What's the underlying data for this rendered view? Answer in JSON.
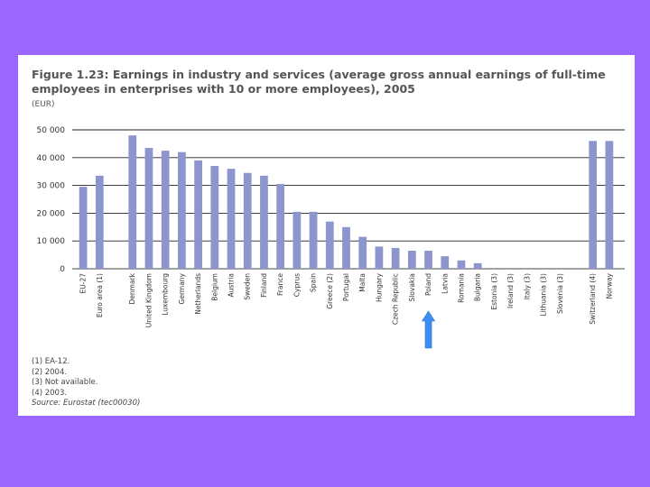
{
  "chart_data": {
    "type": "bar",
    "title": "Figure 1.23: Earnings in industry and services (average gross annual earnings of full-time employees in enterprises with 10 or more employees), 2005",
    "unit": "(EUR)",
    "ylim": [
      0,
      50000
    ],
    "yticks": [
      "50 000",
      "40 000",
      "30 000",
      "20 000",
      "10 000",
      "0"
    ],
    "grid": true,
    "categories": [
      "EU-27",
      "Euro area (1)",
      "",
      "Denmark",
      "United Kingdom",
      "Luxembourg",
      "Germany",
      "Netherlands",
      "Belgium",
      "Austria",
      "Sweden",
      "Finland",
      "France",
      "Cyprus",
      "Spain",
      "Greece (2)",
      "Portugal",
      "Malta",
      "Hungary",
      "Czech Republic",
      "Slovakia",
      "Poland",
      "Latvia",
      "Romania",
      "Bulgaria",
      "Estonia (3)",
      "Ireland (3)",
      "Italy (3)",
      "Lithuania (3)",
      "Slovenia (3)",
      "",
      "Switzerland (4)",
      "Norway"
    ],
    "values": [
      29500,
      33500,
      null,
      48000,
      43500,
      42500,
      42000,
      39000,
      37000,
      36000,
      34500,
      33500,
      30500,
      20500,
      20500,
      17000,
      15000,
      11500,
      8000,
      7500,
      6500,
      6500,
      4500,
      3000,
      2000,
      null,
      null,
      null,
      null,
      null,
      null,
      46000,
      46000
    ],
    "bar_color": "#8c95cd",
    "highlight_category": "Poland",
    "highlight_color": "#3d8ef0"
  },
  "footnotes": [
    "(1)  EA-12.",
    "(2)  2004.",
    "(3)  Not available.",
    "(4)  2003."
  ],
  "source": "Source: Eurostat (tec00030)"
}
